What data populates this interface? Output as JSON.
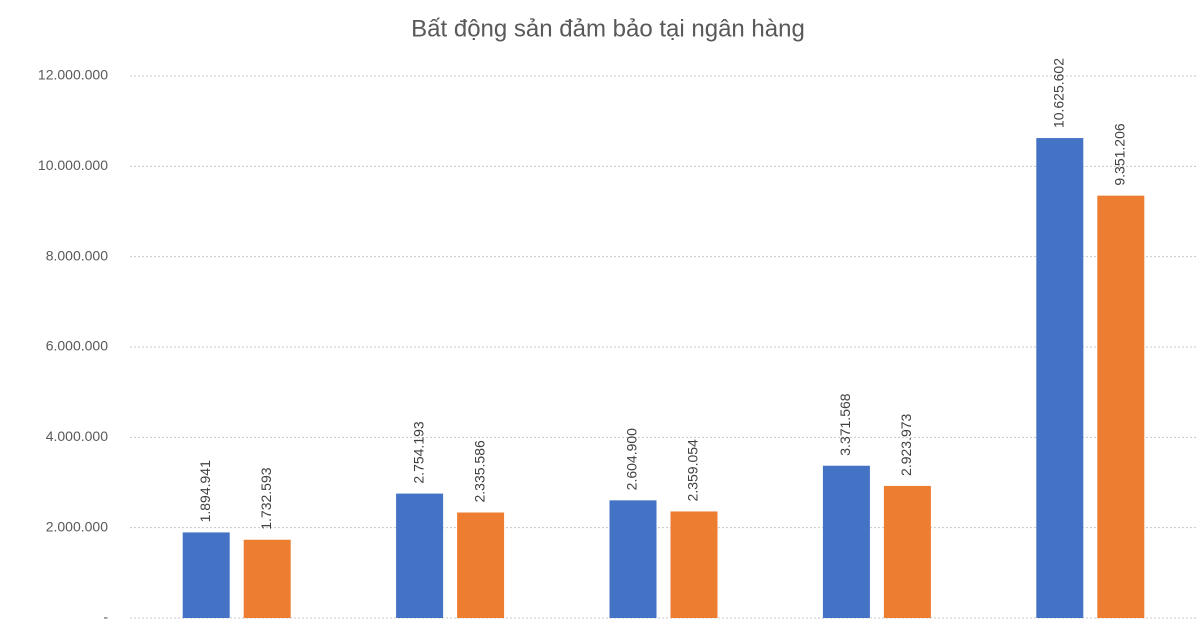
{
  "chart_data": {
    "type": "bar",
    "title": "Bất động sản đảm bảo tại ngân hàng",
    "categories": [
      null,
      null,
      null,
      null,
      null
    ],
    "series": [
      {
        "color": "#4472c4",
        "values": [
          1894941,
          2754193,
          2604900,
          3371568,
          10625602
        ],
        "value_labels": [
          "1.894.941",
          "2.754.193",
          "2.604.900",
          "3.371.568",
          "10.625.602"
        ]
      },
      {
        "color": "#ed7d31",
        "values": [
          1732593,
          2335586,
          2359054,
          2923973,
          9351206
        ],
        "value_labels": [
          "1.732.593",
          "2.335.586",
          "2.359.054",
          "2.923.973",
          "9.351.206"
        ]
      }
    ],
    "ylim": [
      0,
      12000000
    ],
    "yticks": [
      {
        "value": 0,
        "label": "-"
      },
      {
        "value": 2000000,
        "label": "2.000.000"
      },
      {
        "value": 4000000,
        "label": "4.000.000"
      },
      {
        "value": 6000000,
        "label": "6.000.000"
      },
      {
        "value": 8000000,
        "label": "8.000.000"
      },
      {
        "value": 10000000,
        "label": "10.000.000"
      },
      {
        "value": 12000000,
        "label": "12.000.000"
      }
    ],
    "grid": true
  }
}
